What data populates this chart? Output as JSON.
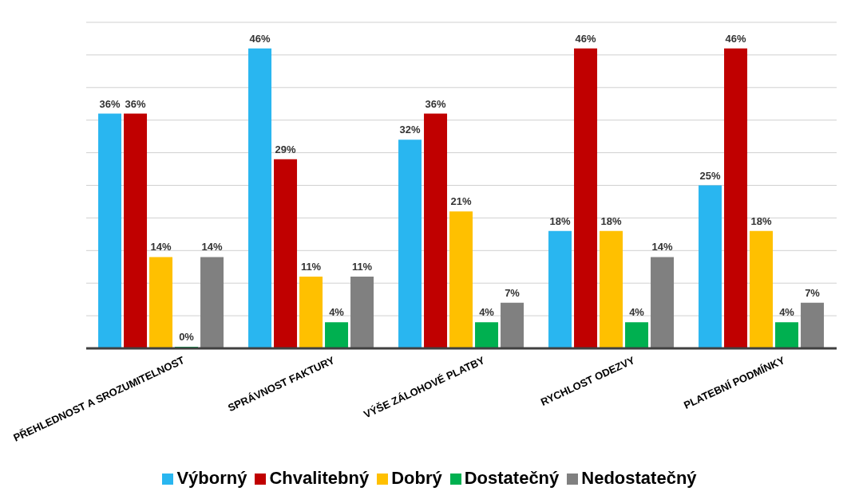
{
  "chart_data": {
    "type": "bar",
    "categories": [
      "PŘEHLEDNOST A SROZUMITELNOST",
      "SPRÁVNOST FAKTURY",
      "VÝŠE ZÁLOHOVÉ PLATBY",
      "RYCHLOST ODEZVY",
      "PLATEBNÍ PODMÍNKY"
    ],
    "series": [
      {
        "name": "Výborný",
        "color": "#29b6f0",
        "values": [
          36,
          46,
          32,
          18,
          25
        ],
        "value_labels": [
          "36%",
          "46%",
          "32%",
          "18%",
          "25%"
        ]
      },
      {
        "name": "Chvalitebný",
        "color": "#c00000",
        "values": [
          36,
          29,
          36,
          46,
          46
        ],
        "value_labels": [
          "36%",
          "29%",
          "36%",
          "46%",
          "46%"
        ]
      },
      {
        "name": "Dobrý",
        "color": "#ffc000",
        "values": [
          14,
          11,
          21,
          18,
          18
        ],
        "value_labels": [
          "14%",
          "11%",
          "21%",
          "18%",
          "18%"
        ]
      },
      {
        "name": "Dostatečný",
        "color": "#00b050",
        "values": [
          0,
          4,
          4,
          4,
          4
        ],
        "value_labels": [
          "0%",
          "4%",
          "4%",
          "4%",
          "4%"
        ]
      },
      {
        "name": "Nedostatečný",
        "color": "#808080",
        "values": [
          14,
          11,
          7,
          14,
          7
        ],
        "value_labels": [
          "14%",
          "11%",
          "7%",
          "14%",
          "7%"
        ]
      }
    ],
    "ylim": [
      0,
      50
    ],
    "yticks": [
      {
        "value": 0,
        "label": null
      },
      {
        "value": 5,
        "label": null
      },
      {
        "value": 10,
        "label": null
      },
      {
        "value": 15,
        "label": null
      },
      {
        "value": 20,
        "label": null
      },
      {
        "value": 25,
        "label": null
      },
      {
        "value": 30,
        "label": null
      },
      {
        "value": 35,
        "label": null
      },
      {
        "value": 40,
        "label": null
      },
      {
        "value": 45,
        "label": null
      },
      {
        "value": 50,
        "label": null
      }
    ],
    "grid": "y",
    "legend": "bottom"
  }
}
